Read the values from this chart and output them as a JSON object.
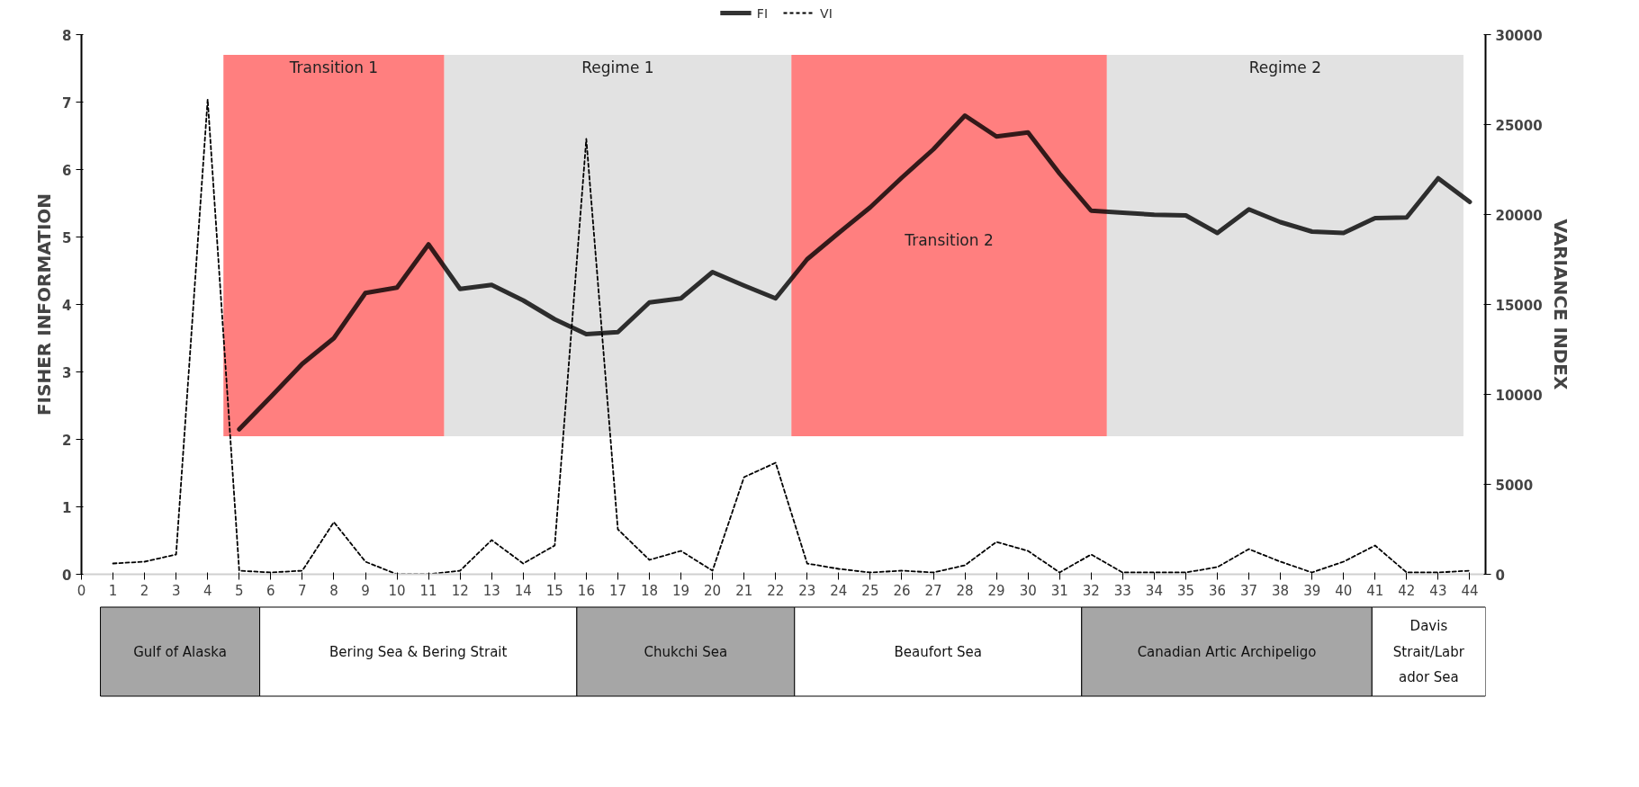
{
  "chart_data": {
    "type": "line",
    "ylabel": "FISHER INFORMATION",
    "y2label": "VARIANCE INDEX",
    "xlim": [
      0,
      44.5
    ],
    "xticks": [
      0,
      1,
      2,
      3,
      4,
      5,
      6,
      7,
      8,
      9,
      10,
      11,
      12,
      13,
      14,
      15,
      16,
      17,
      18,
      19,
      20,
      21,
      22,
      23,
      24,
      25,
      26,
      27,
      28,
      29,
      30,
      31,
      32,
      33,
      34,
      35,
      36,
      37,
      38,
      39,
      40,
      41,
      42,
      43,
      44
    ],
    "ylim": [
      0,
      8
    ],
    "yticks": [
      0,
      1,
      2,
      3,
      4,
      5,
      6,
      7,
      8
    ],
    "y2lim": [
      0,
      30000
    ],
    "y2ticks": [
      0,
      5000,
      10000,
      15000,
      20000,
      25000,
      30000
    ],
    "grid": false,
    "legend": "top",
    "marker": "none",
    "series": [
      {
        "name": "FI",
        "color": "#000000",
        "line_style": "solid",
        "x": [
          5,
          6,
          7,
          8,
          9,
          10,
          11,
          12,
          13,
          14,
          15,
          16,
          17,
          18,
          19,
          20,
          21,
          22,
          23,
          24,
          25,
          26,
          27,
          28,
          29,
          30,
          31,
          32,
          33,
          34,
          35,
          36,
          37,
          38,
          39,
          40,
          41,
          42,
          43,
          44
        ],
        "values": [
          2.15,
          2.63,
          3.12,
          3.5,
          4.17,
          4.25,
          4.89,
          4.23,
          4.29,
          4.06,
          3.78,
          3.56,
          3.59,
          4.03,
          4.09,
          4.48,
          4.28,
          4.09,
          4.67,
          5.06,
          5.44,
          5.88,
          6.3,
          6.8,
          6.49,
          6.55,
          5.94,
          5.39,
          5.36,
          5.33,
          5.32,
          5.06,
          5.41,
          5.22,
          5.08,
          5.06,
          5.28,
          5.29,
          5.87,
          5.52
        ]
      },
      {
        "name": "VI",
        "color": "#000000",
        "line_style": "dashed",
        "axis": "y2",
        "x": [
          1,
          2,
          3,
          4,
          5,
          6,
          7,
          8,
          9,
          10,
          11,
          12,
          13,
          14,
          15,
          16,
          17,
          18,
          19,
          20,
          21,
          22,
          23,
          24,
          25,
          26,
          27,
          28,
          29,
          30,
          31,
          32,
          33,
          34,
          35,
          36,
          37,
          38,
          39,
          40,
          41,
          42,
          43,
          44
        ],
        "values": [
          600,
          700,
          1100,
          26400,
          200,
          100,
          200,
          2900,
          700,
          0,
          0,
          200,
          1900,
          600,
          1600,
          24200,
          2500,
          800,
          1300,
          200,
          5400,
          6200,
          600,
          300,
          100,
          200,
          100,
          500,
          1800,
          1300,
          100,
          1100,
          100,
          100,
          100,
          400,
          1400,
          700,
          100,
          700,
          1600,
          100,
          100,
          200
        ]
      }
    ],
    "bands": [
      {
        "axis": "x",
        "from": 4.5,
        "to": 11.5,
        "label": "Transition 1",
        "color": "#ff7f7f"
      },
      {
        "axis": "x",
        "from": 11.5,
        "to": 22.5,
        "label": "Regime 1",
        "color": "#e2e2e2"
      },
      {
        "axis": "x",
        "from": 22.5,
        "to": 32.5,
        "label": "Transition 2",
        "color": "#ff7f7f"
      },
      {
        "axis": "x",
        "from": 32.5,
        "to": 43.8,
        "label": "Regime 2",
        "color": "#e2e2e2"
      }
    ],
    "annotations": [
      "Gulf of Alaska",
      "Bering Sea & Bering Strait",
      "Chukchi Sea",
      "Beaufort Sea",
      "Canadian Artic Archipeligo",
      "Davis Strait/Labr ador Sea"
    ]
  }
}
